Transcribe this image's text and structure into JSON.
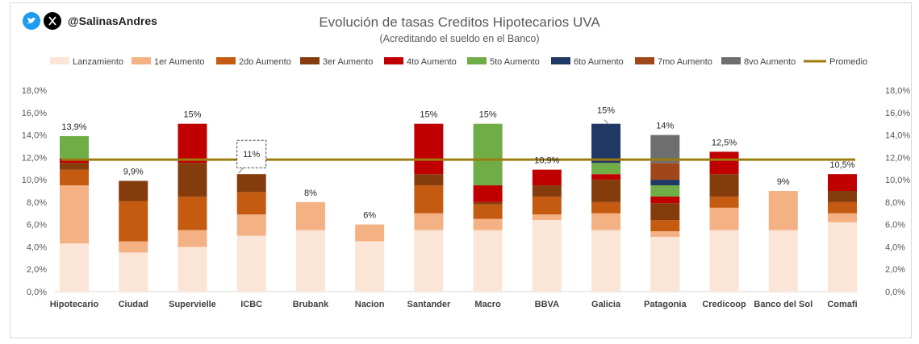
{
  "header": {
    "handle": "@SalinasAndres",
    "bird_icon": "twitter-bird-icon",
    "x_icon": "x-logo-icon"
  },
  "chart_data": {
    "type": "bar",
    "stacked": true,
    "title": "Evolución de tasas Creditos Hipotecarios UVA",
    "subtitle": "(Acreditando el sueldo en el Banco)",
    "xlabel": "",
    "ylabel": "",
    "ylim": [
      0,
      18
    ],
    "yticks": [
      0,
      2,
      4,
      6,
      8,
      10,
      12,
      14,
      16,
      18
    ],
    "ytick_labels": [
      "0,0%",
      "2,0%",
      "4,0%",
      "6,0%",
      "8,0%",
      "10,0%",
      "12,0%",
      "14,0%",
      "16,0%",
      "18,0%"
    ],
    "secondary_axis": true,
    "legend_position": "top",
    "categories": [
      "Hipotecario",
      "Ciudad",
      "Supervielle",
      "ICBC",
      "Brubank",
      "Nacion",
      "Santander",
      "Macro",
      "BBVA",
      "Galicia",
      "Patagonia",
      "Credicoop",
      "Banco del Sol",
      "Comafi"
    ],
    "series": [
      {
        "name": "Lanzamiento",
        "color": "#fbe5d6",
        "values": [
          4.3,
          3.5,
          4.0,
          5.0,
          5.5,
          4.5,
          5.5,
          5.5,
          6.4,
          5.5,
          4.9,
          5.5,
          5.5,
          6.2
        ]
      },
      {
        "name": "1er Aumento",
        "color": "#f4b183",
        "values": [
          5.2,
          1.0,
          1.5,
          1.9,
          2.5,
          1.5,
          1.5,
          1.0,
          0.5,
          1.5,
          0.5,
          2.0,
          3.5,
          0.8
        ]
      },
      {
        "name": "2do Aumento",
        "color": "#c55a11",
        "values": [
          1.4,
          3.6,
          3.0,
          2.0,
          0,
          0,
          2.5,
          1.3,
          1.6,
          1.0,
          1.0,
          1.0,
          0,
          1.0
        ]
      },
      {
        "name": "3er Aumento",
        "color": "#843c0c",
        "values": [
          0.6,
          1.8,
          3.0,
          1.6,
          0,
          0,
          1.0,
          0.2,
          1.0,
          2.0,
          1.5,
          2.0,
          0,
          1.0
        ]
      },
      {
        "name": "4to Aumento",
        "color": "#c00000",
        "values": [
          0.4,
          0,
          3.5,
          0,
          0,
          0,
          4.5,
          1.5,
          1.4,
          0.5,
          0.6,
          2.0,
          0,
          1.5
        ]
      },
      {
        "name": "5to Aumento",
        "color": "#70ad47",
        "values": [
          2.0,
          0,
          0,
          0,
          0,
          0,
          0,
          5.5,
          0,
          1.0,
          1.0,
          0,
          0,
          0
        ]
      },
      {
        "name": "6to Aumento",
        "color": "#203864",
        "values": [
          0,
          0,
          0,
          0,
          0,
          0,
          0,
          0,
          0,
          3.5,
          0.5,
          0,
          0,
          0
        ]
      },
      {
        "name": "7mo Aumento",
        "color": "#a0471a",
        "values": [
          0,
          0,
          0,
          0,
          0,
          0,
          0,
          0,
          0,
          0,
          1.5,
          0,
          0,
          0
        ]
      },
      {
        "name": "8vo Aumento",
        "color": "#6e6e6e",
        "values": [
          0,
          0,
          0,
          0,
          0,
          0,
          0,
          0,
          0,
          0,
          2.5,
          0,
          0,
          0
        ]
      }
    ],
    "average": {
      "name": "Promedio",
      "color": "#9c7c0e",
      "value": 11.8
    },
    "data_labels": [
      "13,9%",
      "9,9%",
      "15%",
      "11%",
      "8%",
      "6%",
      "15%",
      "15%",
      "10,9%",
      "15%",
      "14%",
      "12,5%",
      "9%",
      "10,5%"
    ],
    "label_values": [
      13.9,
      9.9,
      15,
      11,
      8,
      6,
      15,
      15,
      10.9,
      15,
      14,
      12.5,
      9,
      10.5
    ],
    "boxed_label_index": 3,
    "callout_label_indices": [
      3,
      9
    ]
  }
}
